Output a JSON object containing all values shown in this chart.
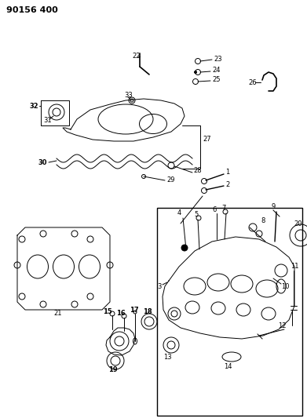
{
  "title": "90156 400",
  "bg_color": "#ffffff",
  "fig_width": 3.91,
  "fig_height": 5.33,
  "dpi": 100,
  "lc": "black",
  "lw": 0.7
}
